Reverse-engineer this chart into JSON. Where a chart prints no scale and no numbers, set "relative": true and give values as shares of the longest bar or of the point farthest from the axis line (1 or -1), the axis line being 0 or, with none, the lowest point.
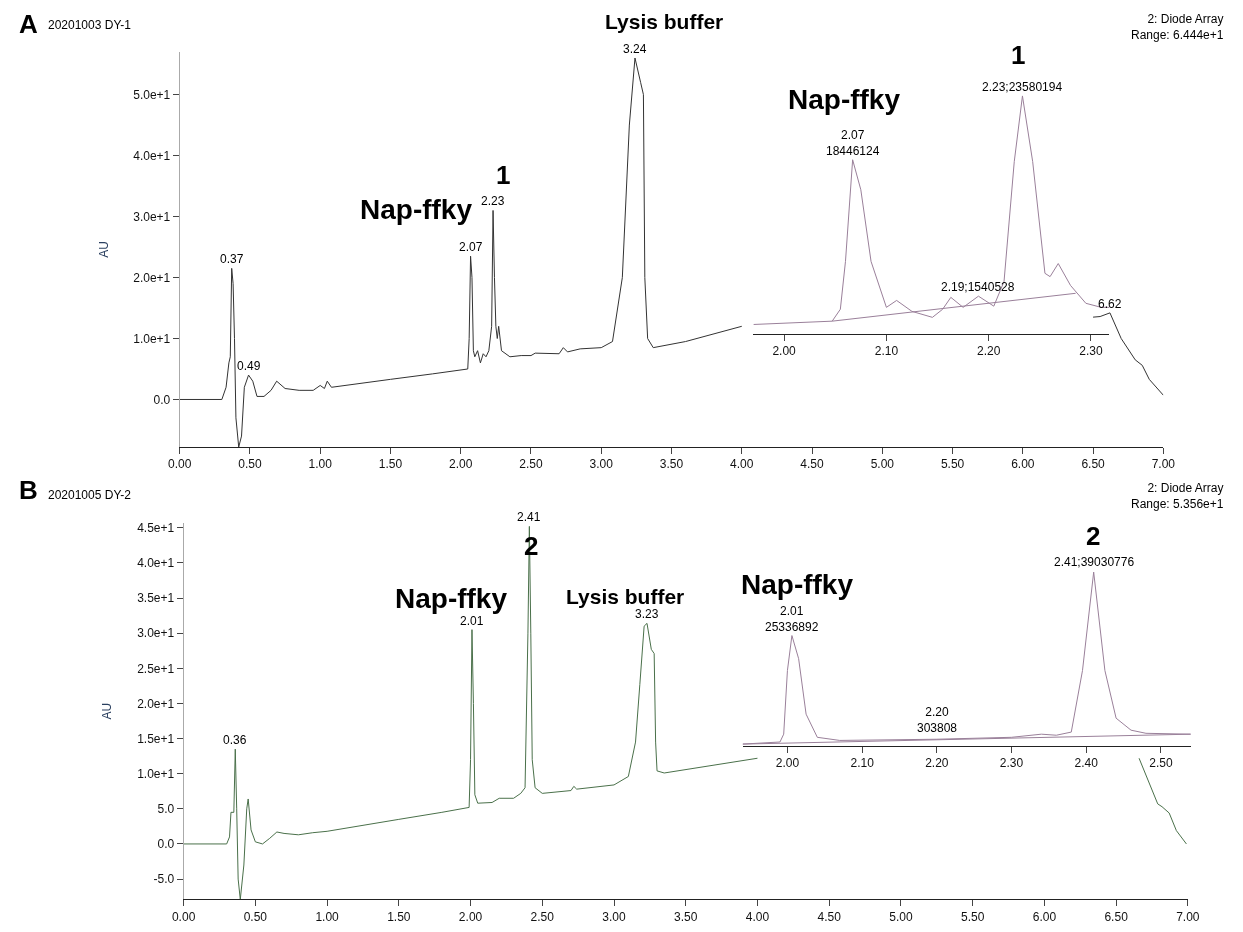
{
  "chart_data": [
    {
      "type": "line",
      "title": "A",
      "ylabel": "AU",
      "xlim": [
        0,
        7
      ],
      "xticks": [
        {
          "value": 0,
          "label": "0.00"
        },
        {
          "value": 0.5,
          "label": "0.50"
        },
        {
          "value": 1,
          "label": "1.00"
        },
        {
          "value": 1.5,
          "label": "1.50"
        },
        {
          "value": 2,
          "label": "2.00"
        },
        {
          "value": 2.5,
          "label": "2.50"
        },
        {
          "value": 3,
          "label": "3.00"
        },
        {
          "value": 3.5,
          "label": "3.50"
        },
        {
          "value": 4,
          "label": "4.00"
        },
        {
          "value": 4.5,
          "label": "4.50"
        },
        {
          "value": 5,
          "label": "5.00"
        },
        {
          "value": 5.5,
          "label": "5.50"
        },
        {
          "value": 6,
          "label": "6.00"
        },
        {
          "value": 6.5,
          "label": "6.50"
        },
        {
          "value": 7,
          "label": "7.00"
        }
      ],
      "ylim": [
        -7.8,
        57
      ],
      "yticks": [
        {
          "value": 0,
          "label": "0.0"
        },
        {
          "value": 10,
          "label": "1.0e+1"
        },
        {
          "value": 20,
          "label": "2.0e+1"
        },
        {
          "value": 30,
          "label": "3.0e+1"
        },
        {
          "value": 40,
          "label": "4.0e+1"
        },
        {
          "value": 50,
          "label": "5.0e+1"
        }
      ],
      "series": [
        {
          "color": "#333333",
          "x": [
            0,
            0.3,
            0.33,
            0.35,
            0.36,
            0.37,
            0.38,
            0.39,
            0.4,
            0.42,
            0.44,
            0.46,
            0.49,
            0.52,
            0.55,
            0.6,
            0.65,
            0.69,
            0.75,
            0.85,
            0.95,
            1.0,
            1.03,
            1.05,
            1.08,
            1.5,
            1.8,
            2.05,
            2.06,
            2.07,
            2.08,
            2.09,
            2.1,
            2.12,
            2.14,
            2.16,
            2.18,
            2.2,
            2.22,
            2.23,
            2.24,
            2.25,
            2.26,
            2.27,
            2.29,
            2.35,
            2.43,
            2.5,
            2.53,
            2.7,
            2.73,
            2.76,
            2.85,
            3.0,
            3.08,
            3.15,
            3.2,
            3.24,
            3.28,
            3.3,
            3.31,
            3.33,
            3.37,
            3.6,
            4.0,
            4.01,
            6.49,
            6.5,
            6.55,
            6.62,
            6.7,
            6.8,
            6.85,
            6.9,
            7.0
          ],
          "values": [
            0,
            0,
            2,
            6,
            7,
            21.5,
            19,
            10,
            -3,
            -7.8,
            -6,
            2,
            4,
            3,
            0.5,
            0.5,
            1.5,
            3,
            1.8,
            1.5,
            1.5,
            2.3,
            1.8,
            3,
            2,
            3.3,
            4.2,
            5,
            10,
            23.5,
            20,
            8,
            7,
            8,
            6,
            7.5,
            7,
            8,
            12,
            31,
            20,
            12,
            10,
            12,
            8,
            7,
            7.2,
            7.2,
            7.6,
            7.5,
            8.5,
            7.8,
            8.3,
            8.5,
            9.5,
            20,
            45,
            56,
            52,
            50,
            20,
            10,
            8.5,
            9.5,
            12,
            null,
            null,
            13.5,
            13.6,
            14.2,
            10,
            6.5,
            5.6,
            3.3,
            0.7
          ]
        }
      ],
      "annotations": [
        "20201003 DY-1",
        "Lysis buffer",
        "2: Diode Array\nRange: 6.444e+1",
        "1",
        "Nap-ffky",
        {
          "text": "0.37",
          "x": 0.37,
          "y": 21.5
        },
        {
          "text": "0.49",
          "x": 0.49,
          "y": 4
        },
        {
          "text": "2.07",
          "x": 2.07,
          "y": 23.5
        },
        {
          "text": "2.23",
          "x": 2.23,
          "y": 31
        },
        {
          "text": "3.24",
          "x": 3.24,
          "y": 56
        },
        {
          "text": "6.62",
          "x": 6.62,
          "y": 14.2
        }
      ]
    },
    {
      "type": "line",
      "relative": true,
      "tick_labels": "x",
      "xlim": [
        1.97,
        2.318
      ],
      "xticks": [
        {
          "value": 2.0,
          "label": "2.00"
        },
        {
          "value": 2.1,
          "label": "2.10"
        },
        {
          "value": 2.2,
          "label": "2.20"
        },
        {
          "value": 2.3,
          "label": "2.30"
        }
      ],
      "series": [
        {
          "color": "#9a809a",
          "x": [
            1.97,
            2.047,
            2.055,
            2.06,
            2.067,
            2.075,
            2.085,
            2.1,
            2.11,
            2.125,
            2.145,
            2.155,
            2.163,
            2.175,
            2.19,
            2.205,
            2.215,
            2.225,
            2.233,
            2.243,
            2.255,
            2.26,
            2.268,
            2.28,
            2.295,
            2.31,
            2.318
          ],
          "values": [
            0.04,
            0.054,
            0.104,
            0.305,
            0.732,
            0.606,
            0.305,
            0.112,
            0.141,
            0.095,
            0.07,
            0.104,
            0.154,
            0.112,
            0.159,
            0.117,
            0.221,
            0.724,
            1.0,
            0.724,
            0.255,
            0.241,
            0.296,
            0.204,
            0.129,
            0.112,
            0.112
          ]
        },
        {
          "color": "#9a809a",
          "x": [
            2.047,
            2.285
          ],
          "values": [
            0.054,
            0.171
          ]
        }
      ],
      "annotations": [
        "Nap-ffky",
        "1",
        {
          "text": "2.07\n18446124",
          "x": 2.067,
          "y": 0.732
        },
        {
          "text": "2.23;23580194",
          "x": 2.233,
          "y": 1.0
        },
        {
          "text": "2.19;1540528",
          "x": 2.19,
          "y": 0.159
        }
      ]
    },
    {
      "type": "line",
      "title": "B",
      "ylabel": "AU",
      "xlim": [
        0,
        7
      ],
      "xticks": [
        {
          "value": 0,
          "label": "0.00"
        },
        {
          "value": 0.5,
          "label": "0.50"
        },
        {
          "value": 1,
          "label": "1.00"
        },
        {
          "value": 1.5,
          "label": "1.50"
        },
        {
          "value": 2,
          "label": "2.00"
        },
        {
          "value": 2.5,
          "label": "2.50"
        },
        {
          "value": 3,
          "label": "3.00"
        },
        {
          "value": 3.5,
          "label": "3.50"
        },
        {
          "value": 4,
          "label": "4.00"
        },
        {
          "value": 4.5,
          "label": "4.50"
        },
        {
          "value": 5,
          "label": "5.00"
        },
        {
          "value": 5.5,
          "label": "5.50"
        },
        {
          "value": 6,
          "label": "6.00"
        },
        {
          "value": 6.5,
          "label": "6.50"
        },
        {
          "value": 7,
          "label": "7.00"
        }
      ],
      "ylim": [
        -7.9,
        45.7
      ],
      "yticks": [
        {
          "value": -5,
          "label": "-5.0"
        },
        {
          "value": 0,
          "label": "0.0"
        },
        {
          "value": 5,
          "label": "5.0"
        },
        {
          "value": 10,
          "label": "1.0e+1"
        },
        {
          "value": 15,
          "label": "1.5e+1"
        },
        {
          "value": 20,
          "label": "2.0e+1"
        },
        {
          "value": 25,
          "label": "2.5e+1"
        },
        {
          "value": 30,
          "label": "3.0e+1"
        },
        {
          "value": 35,
          "label": "3.5e+1"
        },
        {
          "value": 40,
          "label": "4.0e+1"
        },
        {
          "value": 45,
          "label": "4.5e+1"
        }
      ],
      "series": [
        {
          "color": "#4a704a",
          "x": [
            0,
            0.3,
            0.32,
            0.33,
            0.35,
            0.36,
            0.37,
            0.38,
            0.395,
            0.42,
            0.44,
            0.45,
            0.47,
            0.5,
            0.55,
            0.6,
            0.65,
            0.7,
            0.8,
            0.9,
            1.0,
            1.5,
            1.8,
            1.99,
            2.0,
            2.01,
            2.02,
            2.03,
            2.05,
            2.15,
            2.2,
            2.3,
            2.35,
            2.38,
            2.4,
            2.41,
            2.42,
            2.43,
            2.45,
            2.5,
            2.7,
            2.72,
            2.74,
            3.0,
            3.1,
            3.15,
            3.18,
            3.21,
            3.23,
            3.26,
            3.28,
            3.29,
            3.3,
            3.35,
            4.0,
            4.01,
            6.65,
            6.66,
            6.79,
            6.82,
            6.87,
            6.92,
            6.99
          ],
          "values": [
            0,
            0,
            1,
            4.5,
            4.5,
            13.5,
            5,
            -5,
            -7.9,
            -3,
            5,
            6.4,
            2,
            0.3,
            0,
            0.8,
            1.7,
            1.5,
            1.3,
            1.6,
            1.8,
            3.5,
            4.5,
            5.2,
            12,
            30.5,
            20,
            7,
            5.8,
            5.9,
            6.5,
            6.5,
            7.2,
            8,
            30,
            45.2,
            30,
            12,
            8,
            7.2,
            7.6,
            8.2,
            7.8,
            8.4,
            9.6,
            14.5,
            22.7,
            31,
            31.4,
            27.7,
            27.1,
            14.5,
            10.4,
            10.1,
            12.2,
            null,
            null,
            12.2,
            5.7,
            5.3,
            4.4,
            1.9,
            0
          ]
        }
      ],
      "annotations": [
        "20201005 DY-2",
        "2: Diode Array\nRange: 5.356e+1",
        "Nap-ffky",
        "2",
        "Lysis buffer",
        {
          "text": "0.36",
          "x": 0.36,
          "y": 13.5
        },
        {
          "text": "2.01",
          "x": 2.01,
          "y": 30.5
        },
        {
          "text": "2.41",
          "x": 2.41,
          "y": 45.2
        },
        {
          "text": "3.23",
          "x": 3.23,
          "y": 31.4
        }
      ]
    },
    {
      "type": "line",
      "relative": true,
      "tick_labels": "x",
      "xlim": [
        1.94,
        2.54
      ],
      "xticks": [
        {
          "value": 2.0,
          "label": "2.00"
        },
        {
          "value": 2.1,
          "label": "2.10"
        },
        {
          "value": 2.2,
          "label": "2.20"
        },
        {
          "value": 2.3,
          "label": "2.30"
        },
        {
          "value": 2.4,
          "label": "2.40"
        },
        {
          "value": 2.5,
          "label": "2.50"
        }
      ],
      "series": [
        {
          "color": "#9a809a",
          "x": [
            1.94,
            1.99,
            1.995,
            2.0,
            2.006,
            2.015,
            2.025,
            2.04,
            2.07,
            2.2,
            2.3,
            2.34,
            2.36,
            2.38,
            2.395,
            2.41,
            2.425,
            2.44,
            2.46,
            2.48,
            2.54
          ],
          "values": [
            0.011,
            0.023,
            0.068,
            0.434,
            0.635,
            0.502,
            0.183,
            0.05,
            0.032,
            0.039,
            0.05,
            0.068,
            0.062,
            0.08,
            0.434,
            1.0,
            0.434,
            0.16,
            0.091,
            0.073,
            0.068
          ]
        },
        {
          "color": "#9a809a",
          "x": [
            1.94,
            2.54
          ],
          "values": [
            0.011,
            0.068
          ]
        }
      ],
      "annotations": [
        "Nap-ffky",
        "2",
        {
          "text": "2.01\n25336892",
          "x": 2.006,
          "y": 0.635
        },
        {
          "text": "2.20\n303808",
          "x": 2.2,
          "y": 0.05
        },
        {
          "text": "2.41;39030776",
          "x": 2.41,
          "y": 1.009
        }
      ]
    }
  ]
}
